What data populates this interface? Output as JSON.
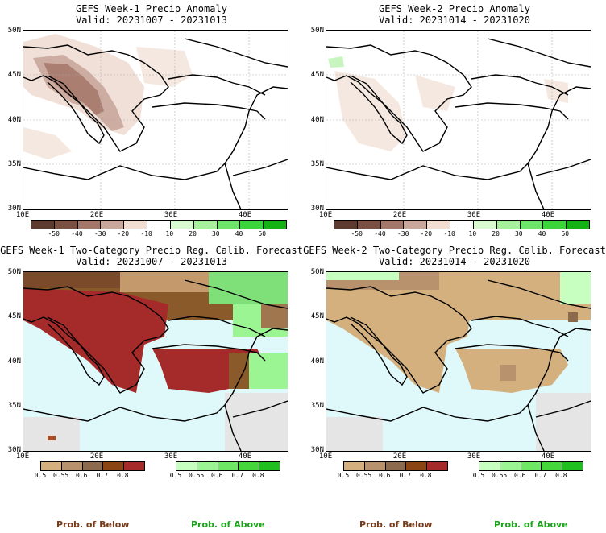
{
  "panels": [
    {
      "title": "GEFS Week-1 Precip Anomaly",
      "valid": "Valid: 20231007 - 20231013"
    },
    {
      "title": "GEFS Week-2 Precip Anomaly",
      "valid": "Valid: 20231014 - 20231020"
    },
    {
      "title": "GEFS Week-1 Two-Category Precip Reg. Calib. Forecast",
      "valid": "Valid: 20231007 - 20231013"
    },
    {
      "title": "GEFS Week-2 Two-Category Precip Reg. Calib. Forecast",
      "valid": "Valid: 20231014 - 20231020"
    }
  ],
  "lat_labels": [
    "50N",
    "45N",
    "40N",
    "35N",
    "30N"
  ],
  "lon_labels": [
    "10E",
    "20E",
    "30E",
    "40E"
  ],
  "anomaly_colorbar": {
    "labels": [
      "-50",
      "-40",
      "-30",
      "-20",
      "-10",
      "10",
      "20",
      "30",
      "40",
      "50"
    ],
    "colors": [
      "#5c3a2e",
      "#7a5043",
      "#a3776a",
      "#c9a79b",
      "#f2ddd2",
      "#ffffff",
      "#d9fad0",
      "#a5f09a",
      "#6ee56a",
      "#3cd43b",
      "#14b114"
    ]
  },
  "prob_colorbar": {
    "below_labels": [
      "0.5",
      "0.55",
      "0.6",
      "0.7",
      "0.8"
    ],
    "above_labels": [
      "0.5",
      "0.55",
      "0.6",
      "0.7",
      "0.8"
    ],
    "below_colors": [
      "#d4b07e",
      "#b8926c",
      "#8c6a4e",
      "#8b4513",
      "#a52a2a"
    ],
    "above_colors": [
      "#c7ffc0",
      "#9cf593",
      "#6ee864",
      "#44d63b",
      "#1fbf1f"
    ]
  },
  "legend": {
    "below": "Prob. of Below",
    "above": "Prob. of Above"
  },
  "colors": {
    "below_text": "#7a3b1a",
    "above_text": "#1aa31a",
    "sea": "#dff9fb",
    "nodata": "#e5e5e5"
  }
}
